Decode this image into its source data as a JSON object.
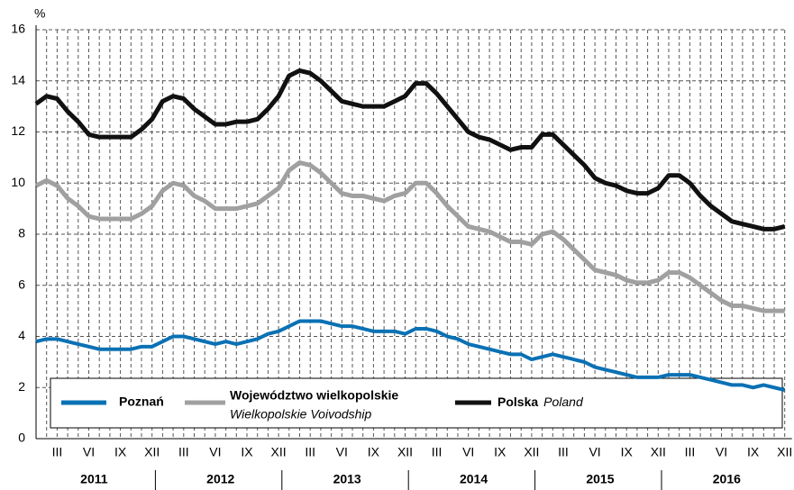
{
  "chart_data": {
    "type": "line",
    "y_label": "%",
    "categories": [
      null,
      null,
      "III",
      null,
      null,
      "VI",
      null,
      null,
      "IX",
      null,
      null,
      "XII",
      null,
      null,
      "III",
      null,
      null,
      "VI",
      null,
      null,
      "IX",
      null,
      null,
      "XII",
      null,
      null,
      "III",
      null,
      null,
      "VI",
      null,
      null,
      "IX",
      null,
      null,
      "XII",
      null,
      null,
      "III",
      null,
      null,
      "VI",
      null,
      null,
      "IX",
      null,
      null,
      "XII",
      null,
      null,
      "III",
      null,
      null,
      "VI",
      null,
      null,
      "IX",
      null,
      null,
      "XII",
      null,
      null,
      "III",
      null,
      null,
      "VI",
      null,
      null,
      "IX",
      null,
      null,
      "XII"
    ],
    "years": [
      "2011",
      "2012",
      "2013",
      "2014",
      "2015",
      "2016"
    ],
    "ylim": [
      0,
      16
    ],
    "yticks": [
      0,
      2,
      4,
      6,
      8,
      10,
      12,
      14,
      16
    ],
    "grid": true,
    "series": [
      {
        "name": "Poznań",
        "color": "#0a71b4",
        "values": [
          3.8,
          3.9,
          3.9,
          3.8,
          3.7,
          3.6,
          3.5,
          3.5,
          3.5,
          3.5,
          3.6,
          3.6,
          3.8,
          4.0,
          4.0,
          3.9,
          3.8,
          3.7,
          3.8,
          3.7,
          3.8,
          3.9,
          4.1,
          4.2,
          4.4,
          4.6,
          4.6,
          4.6,
          4.5,
          4.4,
          4.4,
          4.3,
          4.2,
          4.2,
          4.2,
          4.1,
          4.3,
          4.3,
          4.2,
          4.0,
          3.9,
          3.7,
          3.6,
          3.5,
          3.4,
          3.3,
          3.3,
          3.1,
          3.2,
          3.3,
          3.2,
          3.1,
          3.0,
          2.8,
          2.7,
          2.6,
          2.5,
          2.4,
          2.4,
          2.4,
          2.5,
          2.5,
          2.5,
          2.4,
          2.3,
          2.2,
          2.1,
          2.1,
          2.0,
          2.1,
          2.0,
          1.9
        ]
      },
      {
        "name": "Województwo wielkopolskie",
        "name_en": "Wielkopolskie Voivodship",
        "color": "#a0a0a0",
        "values": [
          9.9,
          10.1,
          9.9,
          9.4,
          9.1,
          8.7,
          8.6,
          8.6,
          8.6,
          8.6,
          8.8,
          9.1,
          9.7,
          10.0,
          9.9,
          9.5,
          9.3,
          9.0,
          9.0,
          9.0,
          9.1,
          9.2,
          9.5,
          9.8,
          10.5,
          10.8,
          10.7,
          10.4,
          10.0,
          9.6,
          9.5,
          9.5,
          9.4,
          9.3,
          9.5,
          9.6,
          10.0,
          10.0,
          9.6,
          9.1,
          8.7,
          8.3,
          8.2,
          8.1,
          7.9,
          7.7,
          7.7,
          7.6,
          8.0,
          8.1,
          7.8,
          7.4,
          7.0,
          6.6,
          6.5,
          6.4,
          6.2,
          6.1,
          6.1,
          6.2,
          6.5,
          6.5,
          6.3,
          6.0,
          5.7,
          5.4,
          5.2,
          5.2,
          5.1,
          5.0,
          5.0,
          5.0
        ]
      },
      {
        "name": "Polska",
        "name_en": "Poland",
        "color": "#111111",
        "values": [
          13.1,
          13.4,
          13.3,
          12.8,
          12.4,
          11.9,
          11.8,
          11.8,
          11.8,
          11.8,
          12.1,
          12.5,
          13.2,
          13.4,
          13.3,
          12.9,
          12.6,
          12.3,
          12.3,
          12.4,
          12.4,
          12.5,
          12.9,
          13.4,
          14.2,
          14.4,
          14.3,
          14.0,
          13.6,
          13.2,
          13.1,
          13.0,
          13.0,
          13.0,
          13.2,
          13.4,
          13.9,
          13.9,
          13.5,
          13.0,
          12.5,
          12.0,
          11.8,
          11.7,
          11.5,
          11.3,
          11.4,
          11.4,
          11.9,
          11.9,
          11.5,
          11.1,
          10.7,
          10.2,
          10.0,
          9.9,
          9.7,
          9.6,
          9.6,
          9.8,
          10.3,
          10.3,
          10.0,
          9.5,
          9.1,
          8.8,
          8.5,
          8.4,
          8.3,
          8.2,
          8.2,
          8.3
        ]
      }
    ]
  }
}
